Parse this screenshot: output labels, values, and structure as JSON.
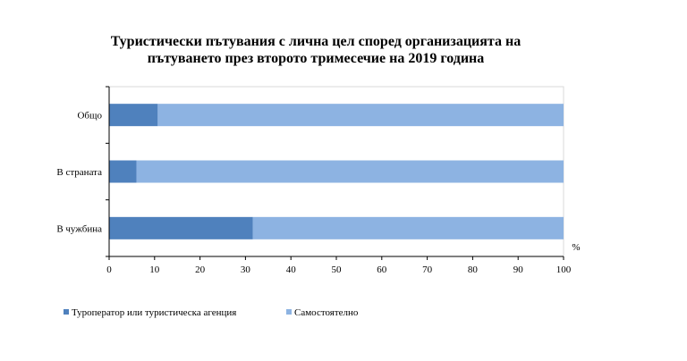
{
  "chart_data": {
    "type": "bar",
    "orientation": "horizontal",
    "stacked": true,
    "title_lines": [
      "Туристически пътувания с лична цел според организацията на",
      "пътуването през второто тримесечие на 2019 година"
    ],
    "categories": [
      "Общо",
      "В страната",
      "В чужбина"
    ],
    "series": [
      {
        "name": "Туроператор или туристическа агенция",
        "values": [
          10.7,
          6.0,
          31.6
        ],
        "color": "#4f81bd"
      },
      {
        "name": "Самостоятелно",
        "values": [
          89.3,
          94.0,
          68.4
        ],
        "color": "#8db3e2"
      }
    ],
    "xlim": [
      0,
      100
    ],
    "xticks": [
      "0",
      "10",
      "20",
      "30",
      "40",
      "50",
      "60",
      "70",
      "80",
      "90",
      "100"
    ],
    "unit_label": "%",
    "grid": false,
    "legend_position": "bottom"
  }
}
